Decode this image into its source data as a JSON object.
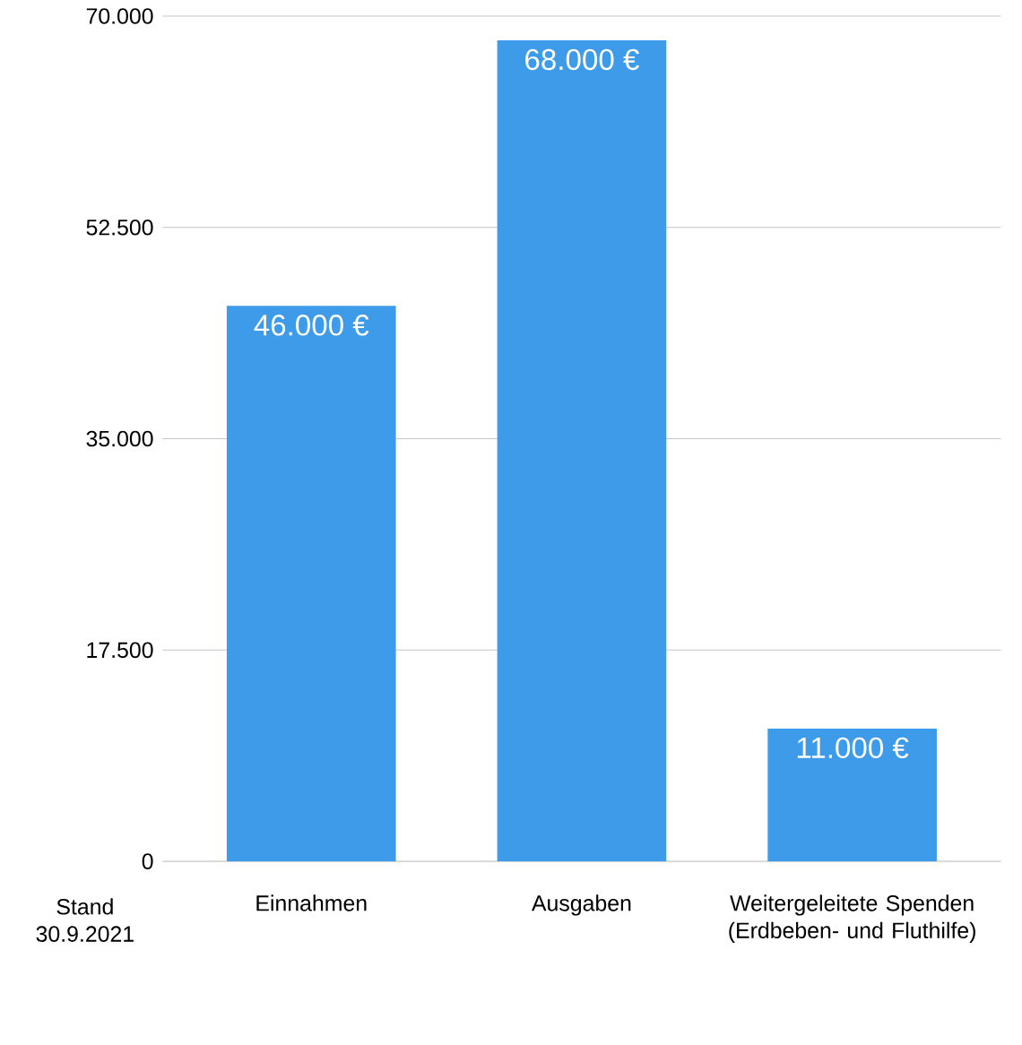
{
  "chart_data": {
    "type": "bar",
    "categories": [
      "Einnahmen",
      "Ausgaben",
      "Weitergeleitete Spenden (Erdbeben- und Fluthilfe)"
    ],
    "values": [
      46000,
      68000,
      11000
    ],
    "value_labels": [
      "46.000 €",
      "68.000 €",
      "11.000 €"
    ],
    "color": "#3d9be9",
    "ylim": [
      0,
      70000
    ],
    "yticks": [
      {
        "value": 0,
        "label": "0"
      },
      {
        "value": 17500,
        "label": "17.500"
      },
      {
        "value": 35000,
        "label": "35.000"
      },
      {
        "value": 52500,
        "label": "52.500"
      },
      {
        "value": 70000,
        "label": "70.000"
      }
    ],
    "grid": "y",
    "annotations": [
      "Stand 30.9.2021"
    ]
  }
}
